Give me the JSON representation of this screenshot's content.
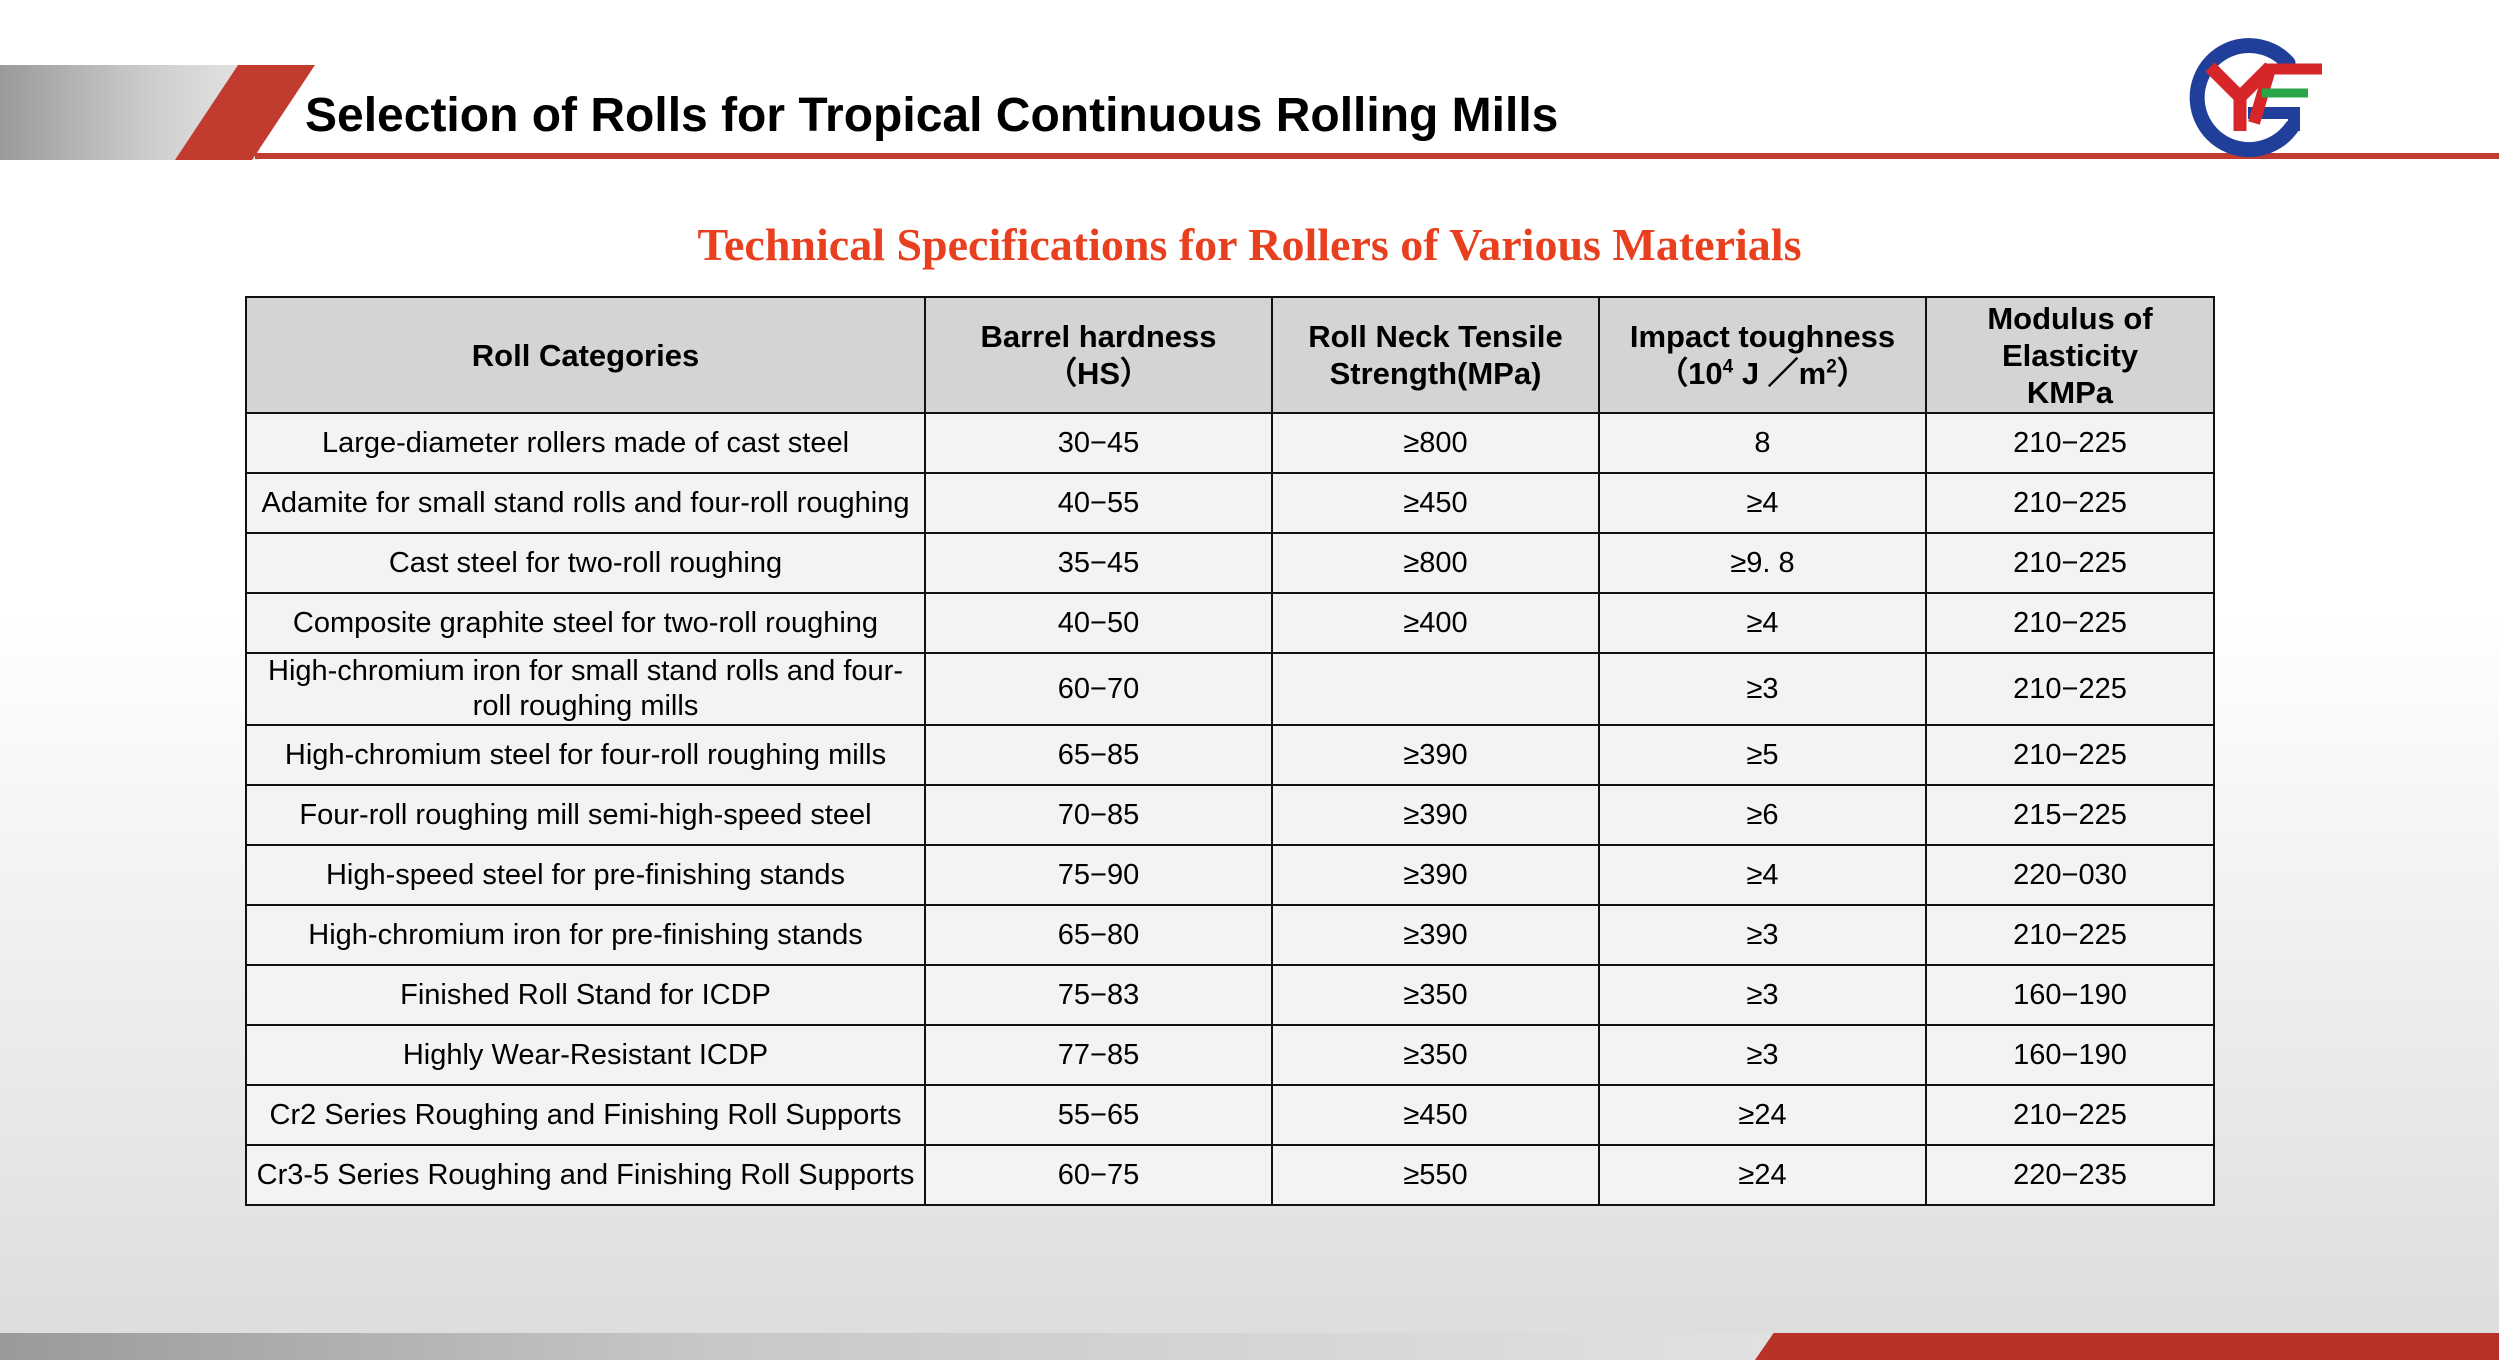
{
  "header": {
    "title": "Selection of Rolls for Tropical Continuous Rolling Mills"
  },
  "logo": {
    "letters": "CYF",
    "colors": {
      "ring": "#1f3f9a",
      "letters": "#d7262a",
      "accent": "#2aa64a"
    }
  },
  "subtitle": "Technical Specifications for Rollers of Various Materials",
  "table": {
    "headers": {
      "category": "Roll Categories",
      "hardness_line1": "Barrel hardness",
      "hardness_line2": "（HS）",
      "neck_line1": "Roll Neck Tensile",
      "neck_line2": "Strength(MPa)",
      "impact_line1": "Impact toughness",
      "impact_line2_pre": "（10",
      "impact_line2_sup": "4",
      "impact_line2_mid": " J ／m",
      "impact_line2_sup2": "2",
      "impact_line2_post": "）",
      "modulus_line1": "Modulus of",
      "modulus_line2": "Elasticity",
      "modulus_line3": "KMPa"
    },
    "rows": [
      {
        "category": "Large-diameter rollers made of  cast steel",
        "hardness": "30−45",
        "tensile": "≥800",
        "impact": "8",
        "modulus": "210−225"
      },
      {
        "category": "Adamite for small stand rolls and four-roll roughing",
        "hardness": "40−55",
        "tensile": "≥450",
        "impact": "≥4",
        "modulus": "210−225"
      },
      {
        "category": "Cast steel for two-roll roughing",
        "hardness": "35−45",
        "tensile": "≥800",
        "impact": "≥9. 8",
        "modulus": "210−225"
      },
      {
        "category": "Composite graphite steel for two-roll roughing",
        "hardness": "40−50",
        "tensile": "≥400",
        "impact": "≥4",
        "modulus": "210−225"
      },
      {
        "category": "High-chromium iron for small stand rolls and four-roll roughing mills",
        "hardness": "60−70",
        "tensile": "",
        "impact": "≥3",
        "modulus": "210−225"
      },
      {
        "category": "High-chromium steel for four-roll roughing mills",
        "hardness": "65−85",
        "tensile": "≥390",
        "impact": "≥5",
        "modulus": "210−225"
      },
      {
        "category": "Four-roll roughing mill semi-high-speed steel",
        "hardness": "70−85",
        "tensile": "≥390",
        "impact": "≥6",
        "modulus": "215−225"
      },
      {
        "category": "High-speed steel for pre-finishing stands",
        "hardness": "75−90",
        "tensile": "≥390",
        "impact": "≥4",
        "modulus": "220−030"
      },
      {
        "category": "High-chromium iron for pre-finishing stands",
        "hardness": "65−80",
        "tensile": "≥390",
        "impact": "≥3",
        "modulus": "210−225"
      },
      {
        "category": "Finished Roll Stand for ICDP",
        "hardness": "75−83",
        "tensile": "≥350",
        "impact": "≥3",
        "modulus": "160−190"
      },
      {
        "category": "Highly Wear-Resistant ICDP",
        "hardness": "77−85",
        "tensile": "≥350",
        "impact": "≥3",
        "modulus": "160−190"
      },
      {
        "category": "Cr2 Series Roughing and Finishing Roll Supports",
        "hardness": "55−65",
        "tensile": "≥450",
        "impact": "≥24",
        "modulus": "210−225"
      },
      {
        "category": "Cr3-5 Series Roughing and Finishing Roll Supports",
        "hardness": "60−75",
        "tensile": "≥550",
        "impact": "≥24",
        "modulus": "220−235"
      }
    ]
  }
}
